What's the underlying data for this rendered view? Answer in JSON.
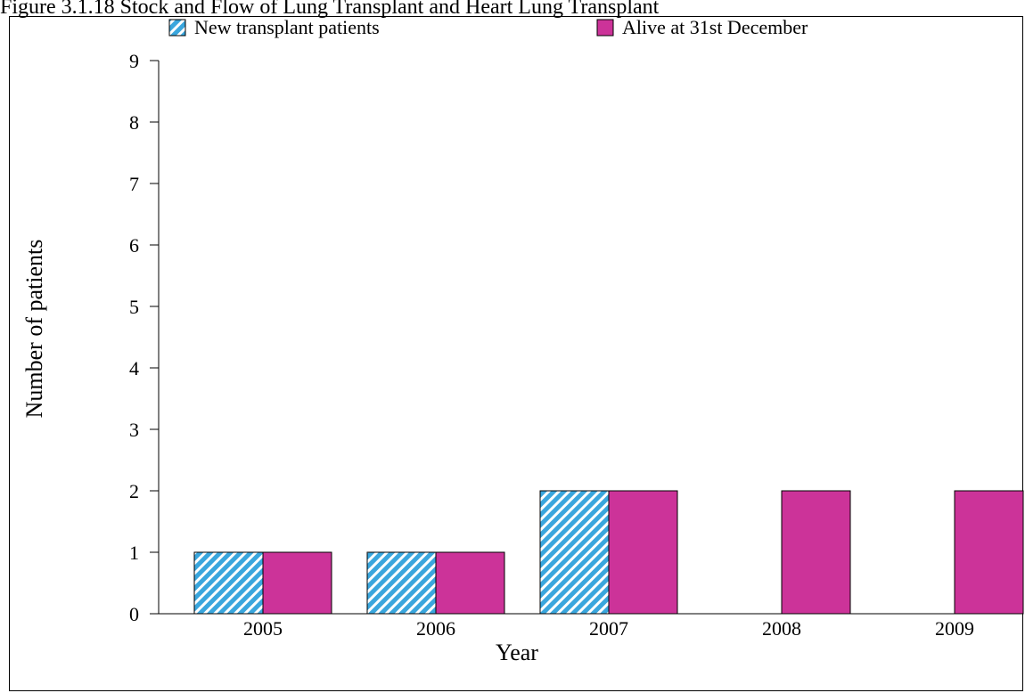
{
  "chart_data": {
    "type": "bar",
    "title": "Figure 3.1.18 Stock and Flow of Lung Transplant and Heart Lung Transplant",
    "xlabel": "Year",
    "ylabel": "Number of patients",
    "categories": [
      "2005",
      "2006",
      "2007",
      "2008",
      "2009"
    ],
    "ylim": [
      0,
      9
    ],
    "yticks": [
      "0",
      "1",
      "2",
      "3",
      "4",
      "5",
      "6",
      "7",
      "8",
      "9"
    ],
    "grid": false,
    "legend_position": "top",
    "series": [
      {
        "name": "New transplant patients",
        "values": [
          1,
          1,
          2,
          0,
          0
        ],
        "color": "#3aa6dd",
        "pattern": "diagonal-hatch"
      },
      {
        "name": "Alive at 31st December",
        "values": [
          1,
          1,
          2,
          2,
          2
        ],
        "color": "#cc3399",
        "pattern": "solid"
      }
    ]
  }
}
